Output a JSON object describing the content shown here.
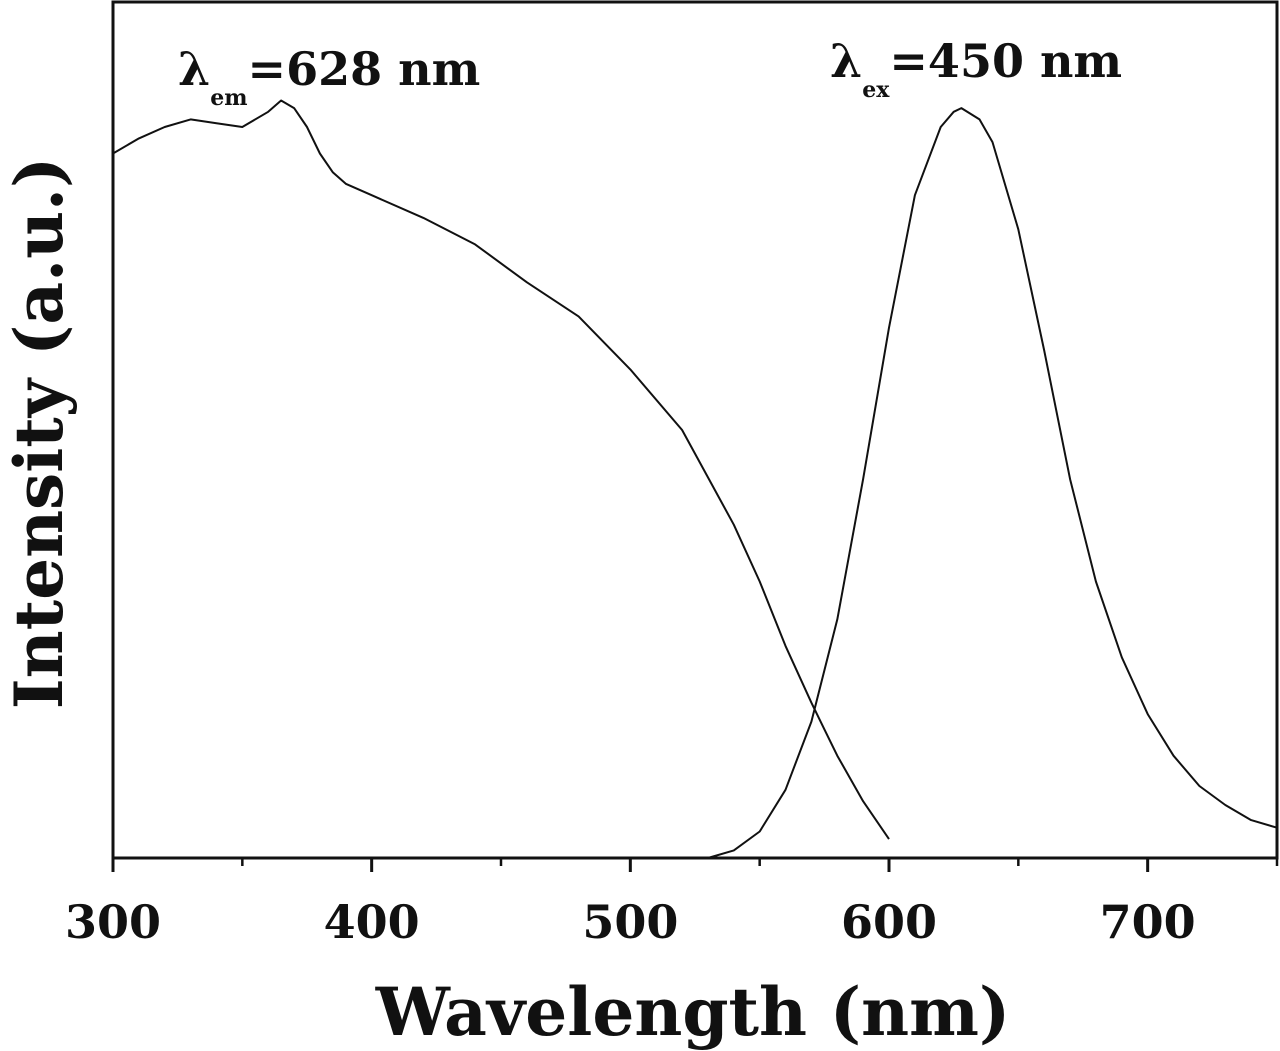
{
  "chart_data": {
    "type": "line",
    "xlabel": "Wavelength (nm)",
    "ylabel": "Intensity (a.u.)",
    "xlim": [
      300,
      750
    ],
    "ylim": [
      0,
      1.0
    ],
    "x_ticks": [
      300,
      400,
      500,
      600,
      700
    ],
    "x_minor_ticks": [
      350,
      450,
      550,
      650,
      750
    ],
    "grid": false,
    "annotations": [
      {
        "lambda": "λ",
        "sub": "em",
        "text": "=628 nm",
        "near_series": "excitation"
      },
      {
        "lambda": "λ",
        "sub": "ex",
        "text": "=450 nm",
        "near_series": "emission"
      }
    ],
    "series": [
      {
        "id": "excitation",
        "x": [
          300,
          310,
          320,
          330,
          340,
          350,
          360,
          365,
          370,
          375,
          380,
          385,
          390,
          400,
          420,
          440,
          460,
          480,
          500,
          520,
          540,
          550,
          560,
          570,
          575,
          580,
          590,
          600
        ],
        "y": [
          0.93,
          0.95,
          0.965,
          0.975,
          0.97,
          0.965,
          0.985,
          1.0,
          0.99,
          0.965,
          0.93,
          0.905,
          0.89,
          0.875,
          0.845,
          0.81,
          0.76,
          0.715,
          0.645,
          0.565,
          0.44,
          0.365,
          0.28,
          0.205,
          0.17,
          0.135,
          0.075,
          0.025
        ]
      },
      {
        "id": "emission",
        "x": [
          530,
          540,
          550,
          560,
          570,
          580,
          590,
          600,
          610,
          620,
          625,
          628,
          635,
          640,
          650,
          660,
          670,
          680,
          690,
          700,
          710,
          720,
          730,
          740,
          750
        ],
        "y": [
          0.0,
          0.01,
          0.035,
          0.09,
          0.18,
          0.315,
          0.5,
          0.7,
          0.875,
          0.965,
          0.985,
          0.99,
          0.975,
          0.945,
          0.83,
          0.67,
          0.5,
          0.365,
          0.265,
          0.19,
          0.135,
          0.095,
          0.07,
          0.05,
          0.04
        ]
      }
    ]
  }
}
